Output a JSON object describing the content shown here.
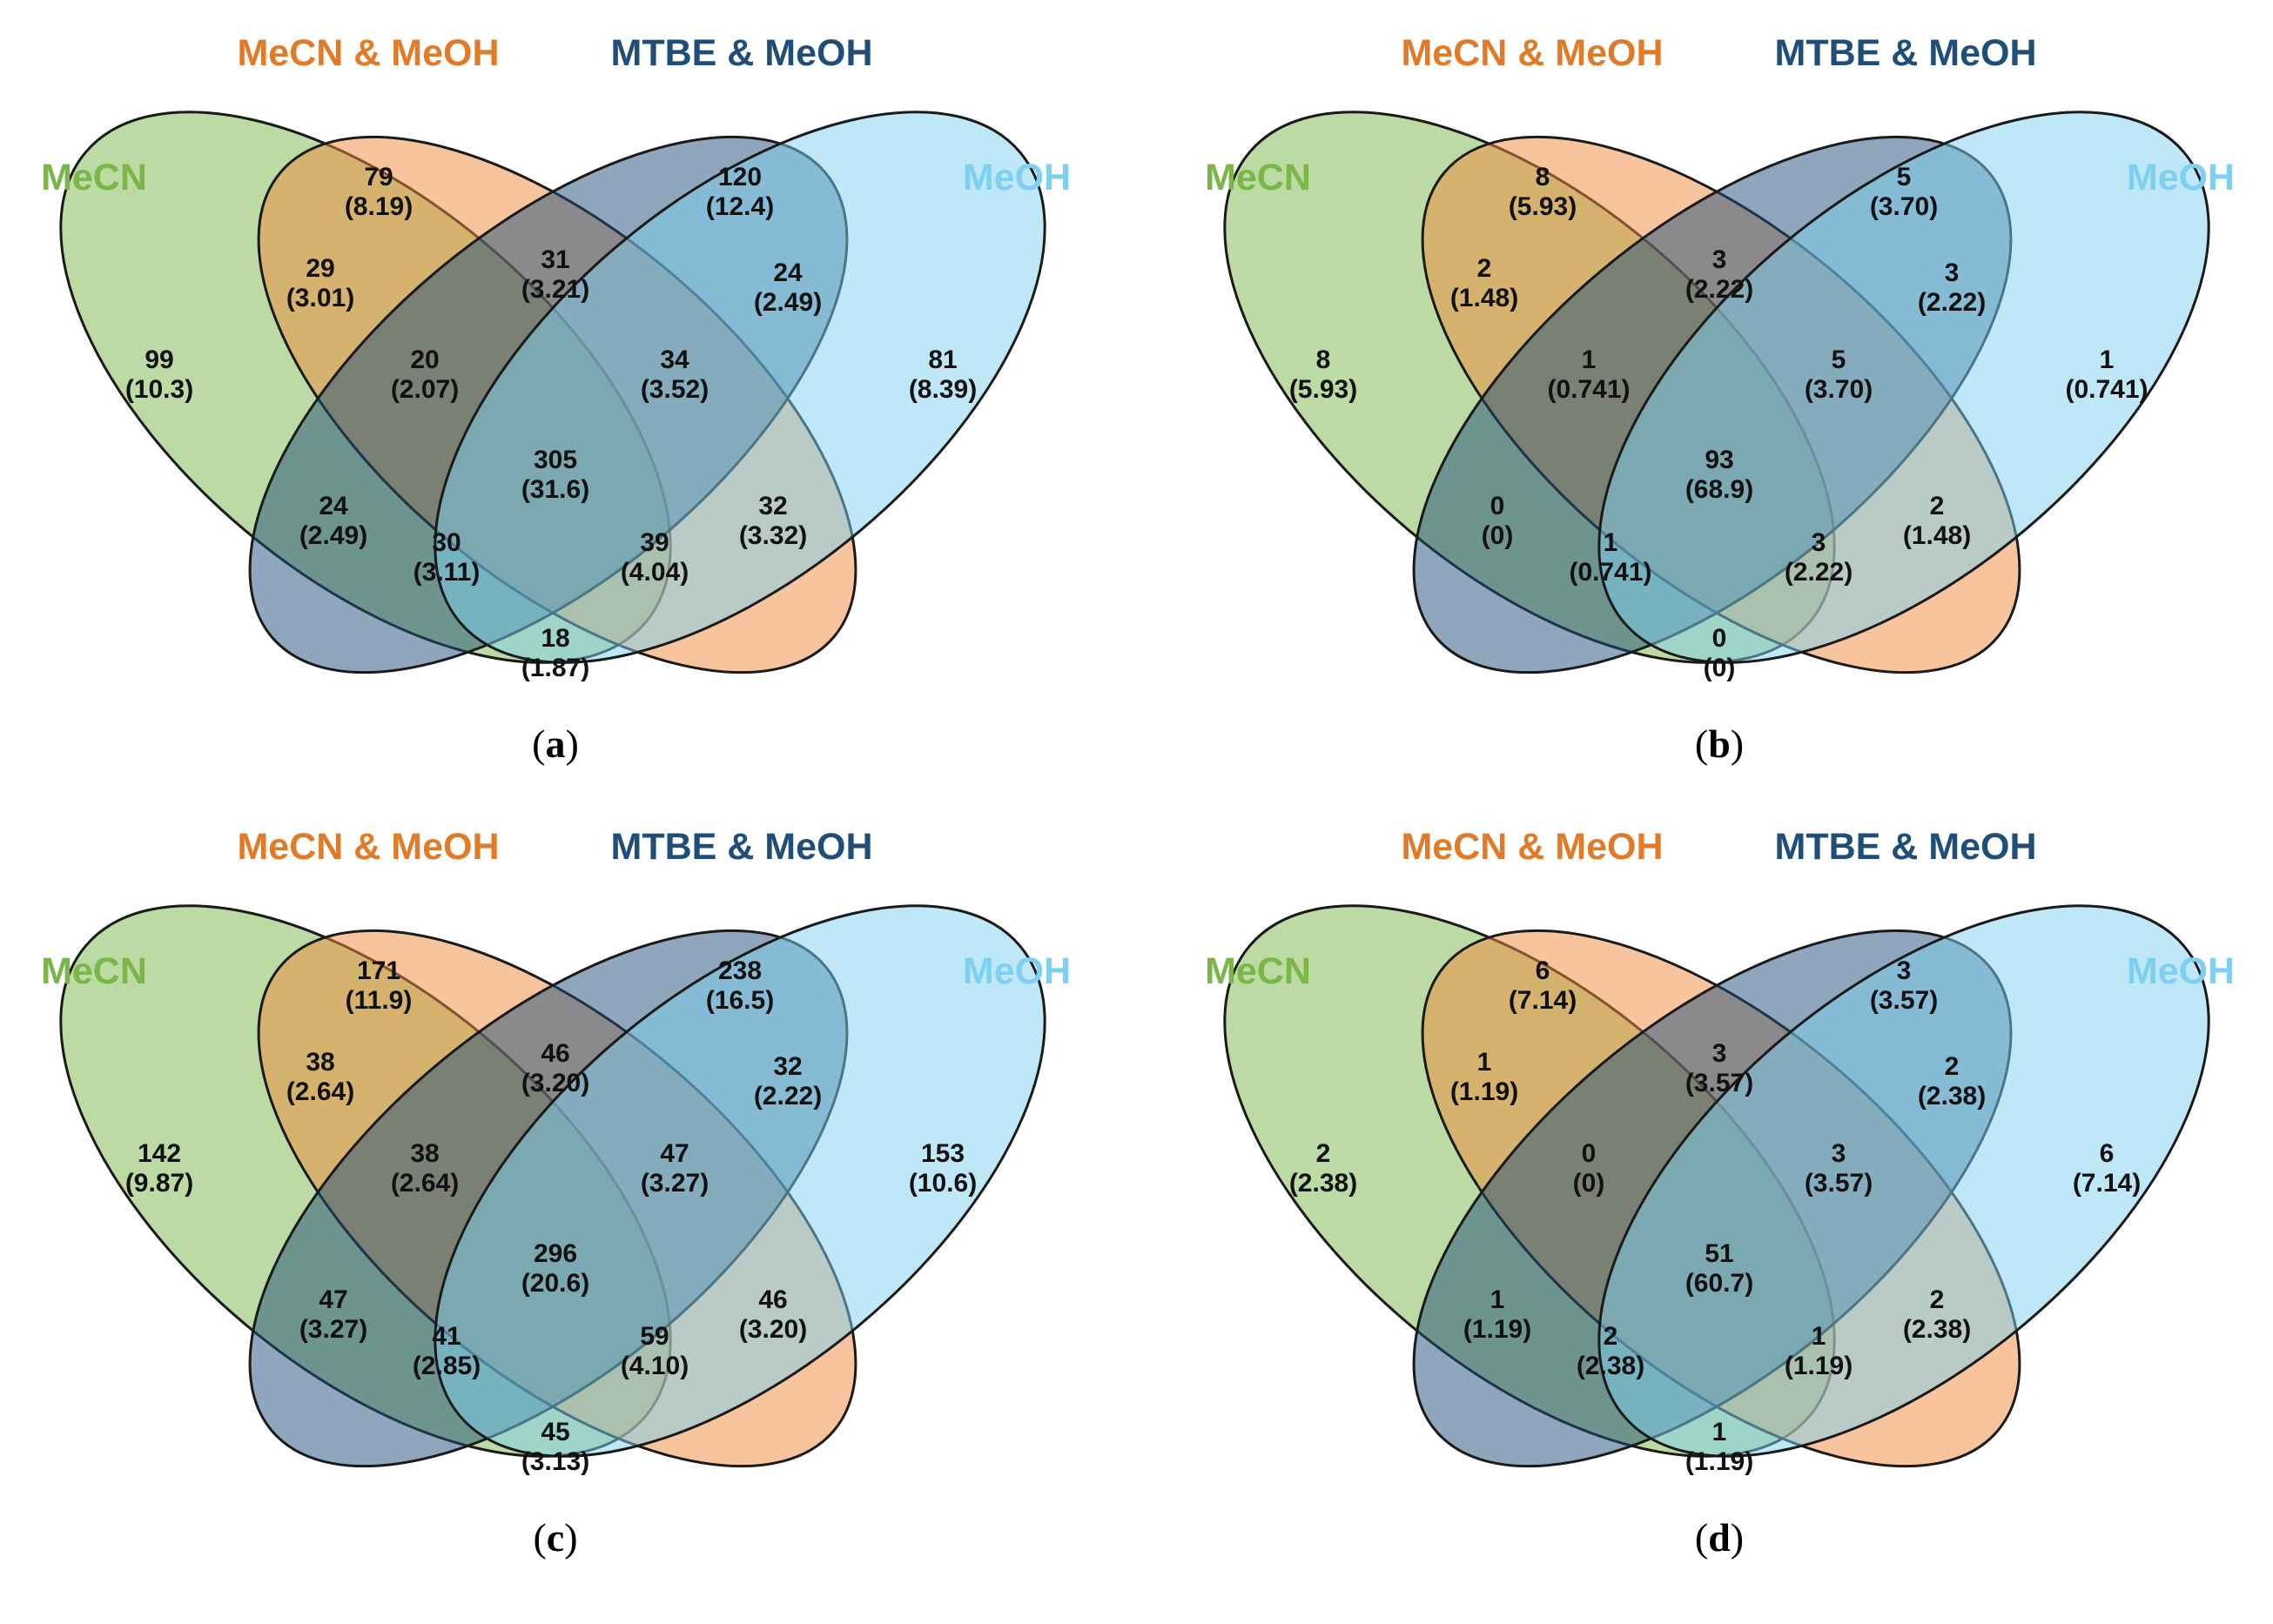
{
  "sets": {
    "mecn": {
      "label": "MeCN",
      "color": "#7ab648",
      "fill": "#7ab648"
    },
    "mecn_meoh": {
      "label": "MeCN & MeOH",
      "color": "#e07b2a",
      "fill": "#f08a3c"
    },
    "mtbe_meoh": {
      "label": "MTBE & MeOH",
      "color": "#1f4e79",
      "fill": "#1f4e79"
    },
    "meoh": {
      "label": "MeOH",
      "color": "#7dd0f0",
      "fill": "#7dd0f0"
    }
  },
  "region_order": [
    "A",
    "B",
    "C",
    "D",
    "AB",
    "BC",
    "CD",
    "AC",
    "ABC",
    "BCD",
    "ABD",
    "ACD",
    "BD",
    "ABCD",
    "AD"
  ],
  "panels": [
    {
      "id": "a",
      "caption_open": "(",
      "caption_letter": "a",
      "caption_close": ")",
      "regions": {
        "A": [
          "99",
          "(10.3)"
        ],
        "B": [
          "79",
          "(8.19)"
        ],
        "C": [
          "120",
          "(12.4)"
        ],
        "D": [
          "81",
          "(8.39)"
        ],
        "AB": [
          "29",
          "(3.01)"
        ],
        "BC": [
          "31",
          "(3.21)"
        ],
        "CD": [
          "24",
          "(2.49)"
        ],
        "AC": [
          "24",
          "(2.49)"
        ],
        "ABC": [
          "20",
          "(2.07)"
        ],
        "BCD": [
          "34",
          "(3.52)"
        ],
        "ABD": [
          "39",
          "(4.04)"
        ],
        "ACD": [
          "30",
          "(3.11)"
        ],
        "BD": [
          "32",
          "(3.32)"
        ],
        "ABCD": [
          "305",
          "(31.6)"
        ],
        "AD": [
          "18",
          "(1.87)"
        ]
      }
    },
    {
      "id": "b",
      "caption_open": "(",
      "caption_letter": "b",
      "caption_close": ")",
      "regions": {
        "A": [
          "8",
          "(5.93)"
        ],
        "B": [
          "8",
          "(5.93)"
        ],
        "C": [
          "5",
          "(3.70)"
        ],
        "D": [
          "1",
          "(0.741)"
        ],
        "AB": [
          "2",
          "(1.48)"
        ],
        "BC": [
          "3",
          "(2.22)"
        ],
        "CD": [
          "3",
          "(2.22)"
        ],
        "AC": [
          "0",
          "(0)"
        ],
        "ABC": [
          "1",
          "(0.741)"
        ],
        "BCD": [
          "5",
          "(3.70)"
        ],
        "ABD": [
          "3",
          "(2.22)"
        ],
        "ACD": [
          "1",
          "(0.741)"
        ],
        "BD": [
          "2",
          "(1.48)"
        ],
        "ABCD": [
          "93",
          "(68.9)"
        ],
        "AD": [
          "0",
          "(0)"
        ]
      }
    },
    {
      "id": "c",
      "caption_open": "(",
      "caption_letter": "c",
      "caption_close": ")",
      "regions": {
        "A": [
          "142",
          "(9.87)"
        ],
        "B": [
          "171",
          "(11.9)"
        ],
        "C": [
          "238",
          "(16.5)"
        ],
        "D": [
          "153",
          "(10.6)"
        ],
        "AB": [
          "38",
          "(2.64)"
        ],
        "BC": [
          "46",
          "(3.20)"
        ],
        "CD": [
          "32",
          "(2.22)"
        ],
        "AC": [
          "47",
          "(3.27)"
        ],
        "ABC": [
          "38",
          "(2.64)"
        ],
        "BCD": [
          "47",
          "(3.27)"
        ],
        "ABD": [
          "59",
          "(4.10)"
        ],
        "ACD": [
          "41",
          "(2.85)"
        ],
        "BD": [
          "46",
          "(3.20)"
        ],
        "ABCD": [
          "296",
          "(20.6)"
        ],
        "AD": [
          "45",
          "(3.13)"
        ]
      }
    },
    {
      "id": "d",
      "caption_open": "(",
      "caption_letter": "d",
      "caption_close": ")",
      "regions": {
        "A": [
          "2",
          "(2.38)"
        ],
        "B": [
          "6",
          "(7.14)"
        ],
        "C": [
          "3",
          "(3.57)"
        ],
        "D": [
          "6",
          "(7.14)"
        ],
        "AB": [
          "1",
          "(1.19)"
        ],
        "BC": [
          "3",
          "(3.57)"
        ],
        "CD": [
          "2",
          "(2.38)"
        ],
        "AC": [
          "1",
          "(1.19)"
        ],
        "ABC": [
          "0",
          "(0)"
        ],
        "BCD": [
          "3",
          "(3.57)"
        ],
        "ABD": [
          "1",
          "(1.19)"
        ],
        "ACD": [
          "2",
          "(2.38)"
        ],
        "BD": [
          "2",
          "(2.38)"
        ],
        "ABCD": [
          "51",
          "(60.7)"
        ],
        "AD": [
          "1",
          "(1.19)"
        ]
      }
    }
  ]
}
